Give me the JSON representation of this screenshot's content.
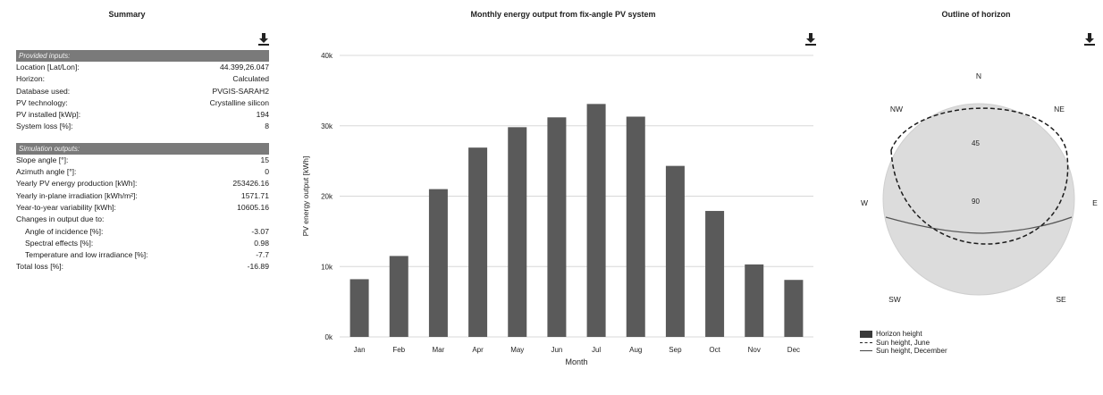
{
  "summary": {
    "title": "Summary",
    "provided_header": "Provided inputs:",
    "provided": [
      {
        "label": "Location [Lat/Lon]:",
        "value": "44.399,26.047"
      },
      {
        "label": "Horizon:",
        "value": "Calculated"
      },
      {
        "label": "Database used:",
        "value": "PVGIS-SARAH2"
      },
      {
        "label": "PV technology:",
        "value": "Crystalline silicon"
      },
      {
        "label": "PV installed [kWp]:",
        "value": "194"
      },
      {
        "label": "System loss [%]:",
        "value": "8"
      }
    ],
    "simulation_header": "Simulation outputs:",
    "simulation": [
      {
        "label": "Slope angle [°]:",
        "value": "15"
      },
      {
        "label": "Azimuth angle [°]:",
        "value": "0"
      },
      {
        "label": "Yearly PV energy production [kWh]:",
        "value": "253426.16"
      },
      {
        "label": "Yearly in-plane irradiation [kWh/m²]:",
        "value": "1571.71"
      },
      {
        "label": "Year-to-year variability [kWh]:",
        "value": "10605.16"
      },
      {
        "label": "Changes in output due to:",
        "value": ""
      },
      {
        "label": "Angle of incidence [%]:",
        "value": "-3.07"
      },
      {
        "label": "Spectral effects [%]:",
        "value": "0.98"
      },
      {
        "label": "Temperature and low irradiance [%]:",
        "value": "-7.7"
      },
      {
        "label": "Total loss [%]:",
        "value": "-16.89"
      }
    ]
  },
  "chart_data": [
    {
      "type": "bar",
      "title": "Monthly energy output from fix-angle PV system",
      "xlabel": "Month",
      "ylabel": "PV energy output [kWh]",
      "categories": [
        "Jan",
        "Feb",
        "Mar",
        "Apr",
        "May",
        "Jun",
        "Jul",
        "Aug",
        "Sep",
        "Oct",
        "Nov",
        "Dec"
      ],
      "values": [
        8200,
        11500,
        21000,
        26900,
        29800,
        31200,
        33100,
        31300,
        24300,
        17900,
        10300,
        8100
      ],
      "ylim": [
        0,
        40000
      ],
      "yticks": [
        0,
        10000,
        20000,
        30000,
        40000
      ],
      "ytick_labels": [
        "0k",
        "10k",
        "20k",
        "30k",
        "40k"
      ],
      "grid": true,
      "bar_color": "#5a5a5a"
    },
    {
      "type": "polar",
      "title": "Outline of horizon",
      "directions": [
        "N",
        "NE",
        "E",
        "SE",
        "S",
        "SW",
        "W",
        "NW"
      ],
      "ring_labels": [
        "45",
        "90"
      ],
      "legend": [
        "Horizon height",
        "Sun height, June",
        "Sun height, December"
      ],
      "legend_placement": "bottom-left"
    }
  ],
  "colors": {
    "bar": "#5a5a5a",
    "header_bg": "#7a7a7a",
    "disc": "#dcdcdc",
    "grid": "#d8d8d8"
  },
  "icons": [
    "download-icon"
  ]
}
